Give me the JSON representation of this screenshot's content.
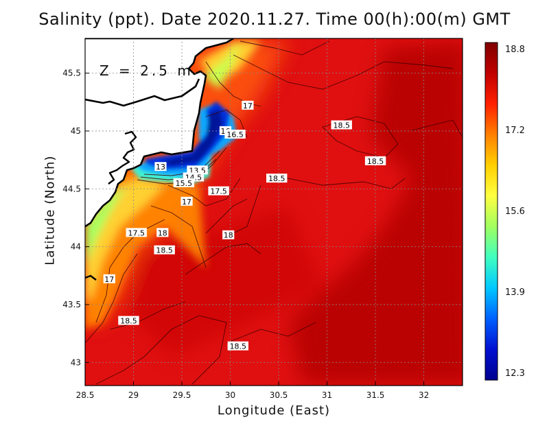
{
  "title": "Salinity (ppt). Date 2020.11.27. Time 00(h):00(m)  GMT",
  "depth_label": "Z = 2.5 m",
  "xlabel": "Longitude (East)",
  "ylabel": "Latitude (North)",
  "x_ticks": [
    "28.5",
    "29",
    "29.5",
    "30",
    "30.5",
    "31",
    "31.5",
    "32"
  ],
  "y_ticks": [
    "43",
    "43.5",
    "44",
    "44.5",
    "45",
    "45.5"
  ],
  "colorbar": {
    "labels": [
      "18.8",
      "17.2",
      "15.6",
      "13.9",
      "12.3"
    ],
    "colors": [
      "#800000",
      "#c00000",
      "#ff2000",
      "#ff8000",
      "#ffd000",
      "#ffff40",
      "#a0ff60",
      "#40ffc0",
      "#00c8ff",
      "#0060ff",
      "#0010d0",
      "#00008f"
    ]
  },
  "contour_labels": [
    {
      "text": "17",
      "lon": 30.18,
      "lat": 45.22
    },
    {
      "text": "18.5",
      "lon": 31.15,
      "lat": 45.05
    },
    {
      "text": "18.5",
      "lon": 31.5,
      "lat": 44.74
    },
    {
      "text": "16",
      "lon": 29.95,
      "lat": 45.0
    },
    {
      "text": "16.5",
      "lon": 30.05,
      "lat": 44.97
    },
    {
      "text": "13",
      "lon": 29.28,
      "lat": 44.69
    },
    {
      "text": "13.5",
      "lon": 29.66,
      "lat": 44.66
    },
    {
      "text": "14.5",
      "lon": 29.62,
      "lat": 44.6
    },
    {
      "text": "15.5",
      "lon": 29.52,
      "lat": 44.55
    },
    {
      "text": "18.5",
      "lon": 30.48,
      "lat": 44.59
    },
    {
      "text": "17.5",
      "lon": 29.88,
      "lat": 44.48
    },
    {
      "text": "17",
      "lon": 29.55,
      "lat": 44.39
    },
    {
      "text": "17.5",
      "lon": 29.03,
      "lat": 44.12
    },
    {
      "text": "18",
      "lon": 29.3,
      "lat": 44.12
    },
    {
      "text": "18",
      "lon": 29.98,
      "lat": 44.1
    },
    {
      "text": "18.5",
      "lon": 29.32,
      "lat": 43.97
    },
    {
      "text": "17",
      "lon": 28.75,
      "lat": 43.72
    },
    {
      "text": "18.5",
      "lon": 28.95,
      "lat": 43.36
    },
    {
      "text": "18.5",
      "lon": 30.08,
      "lat": 43.14
    }
  ]
}
